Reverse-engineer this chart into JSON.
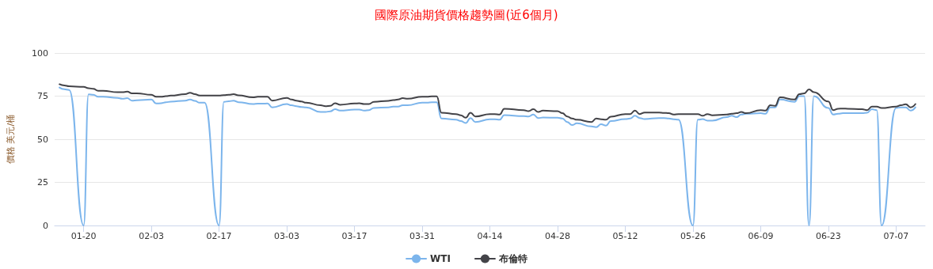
{
  "chart_data": {
    "type": "line",
    "title": "國際原油期貨價格趨勢圖(近6個月)",
    "ylabel": "價格 美元/桶",
    "x": [
      "--01-15",
      "--01-16",
      "--01-17",
      "--01-20",
      "--01-21",
      "--01-22",
      "--01-23",
      "--01-24",
      "--01-27",
      "--01-28",
      "--01-29",
      "--01-30",
      "--01-31",
      "--02-03",
      "--02-04",
      "--02-05",
      "--02-06",
      "--02-07",
      "--02-10",
      "--02-11",
      "--02-12",
      "--02-13",
      "--02-14",
      "--02-17",
      "--02-18",
      "--02-19",
      "--02-20",
      "--02-21",
      "--02-24",
      "--02-25",
      "--02-26",
      "--02-27",
      "--02-28",
      "--03-03",
      "--03-04",
      "--03-05",
      "--03-06",
      "--03-07",
      "--03-10",
      "--03-11",
      "--03-12",
      "--03-13",
      "--03-14",
      "--03-17",
      "--03-18",
      "--03-19",
      "--03-20",
      "--03-21",
      "--03-24",
      "--03-25",
      "--03-26",
      "--03-27",
      "--03-28",
      "--03-31",
      "--04-01",
      "--04-02",
      "--04-03",
      "--04-04",
      "--04-07",
      "--04-08",
      "--04-09",
      "--04-10",
      "--04-11",
      "--04-14",
      "--04-15",
      "--04-16",
      "--04-17",
      "--04-21",
      "--04-22",
      "--04-23",
      "--04-24",
      "--04-25",
      "--04-28",
      "--04-29",
      "--04-30",
      "--05-01",
      "--05-02",
      "--05-05",
      "--05-06",
      "--05-07",
      "--05-08",
      "--05-09",
      "--05-12",
      "--05-13",
      "--05-14",
      "--05-15",
      "--05-16",
      "--05-19",
      "--05-20",
      "--05-21",
      "--05-22",
      "--05-23",
      "--05-26",
      "--05-27",
      "--05-28",
      "--05-29",
      "--05-30",
      "--06-02",
      "--06-03",
      "--06-04",
      "--06-05",
      "--06-06",
      "--06-09",
      "--06-10",
      "--06-11",
      "--06-12",
      "--06-13",
      "--06-16",
      "--06-17",
      "--06-18",
      "--06-19",
      "--06-20",
      "--06-23",
      "--06-24",
      "--06-25",
      "--06-26",
      "--06-27",
      "--06-30",
      "--07-01",
      "--07-02",
      "--07-03",
      "--07-04",
      "--07-07",
      "--07-08",
      "--07-09",
      "--07-10",
      "--07-11"
    ],
    "series": [
      {
        "name": "WTI",
        "color": "#7cb5ec",
        "values": [
          80.0,
          79.0,
          78.6,
          0,
          76.0,
          75.8,
          74.6,
          74.7,
          74.0,
          73.5,
          73.8,
          72.4,
          72.6,
          73.0,
          70.7,
          70.9,
          71.4,
          71.8,
          72.4,
          73.0,
          72.2,
          71.2,
          71.2,
          0,
          71.7,
          72.0,
          72.4,
          71.5,
          70.4,
          70.6,
          70.6,
          70.7,
          68.5,
          70.4,
          69.7,
          69.2,
          68.7,
          68.5,
          65.8,
          65.8,
          66.2,
          67.4,
          66.6,
          67.2,
          67.2,
          66.6,
          66.9,
          68.1,
          68.5,
          68.9,
          68.9,
          69.7,
          69.7,
          71.2,
          71.2,
          71.5,
          71.5,
          62.0,
          61.3,
          60.5,
          59.4,
          62.3,
          60.0,
          61.6,
          61.6,
          61.3,
          64.0,
          63.4,
          63.2,
          64.3,
          62.3,
          62.6,
          62.5,
          62.0,
          60.0,
          58.2,
          59.3,
          57.4,
          57.0,
          58.7,
          57.9,
          60.5,
          61.7,
          62.0,
          63.6,
          62.3,
          61.7,
          62.3,
          62.3,
          62.0,
          61.6,
          61.3,
          0,
          61.3,
          61.7,
          60.8,
          60.8,
          62.8,
          63.6,
          62.8,
          64.3,
          64.8,
          65.1,
          64.8,
          68.5,
          68.5,
          73.0,
          71.7,
          75.0,
          75.0,
          0,
          75.0,
          68.1,
          64.3,
          64.8,
          65.1,
          65.1,
          65.1,
          65.4,
          67.4,
          66.9,
          0,
          68.1,
          68.5,
          68.5,
          66.6,
          68.5
        ]
      },
      {
        "name": "布倫特",
        "color": "#434348",
        "values": [
          81.9,
          81.2,
          80.7,
          80.4,
          79.6,
          79.2,
          78.1,
          78.1,
          77.3,
          77.3,
          77.6,
          76.6,
          76.6,
          75.8,
          74.6,
          74.6,
          75.0,
          75.3,
          76.1,
          76.9,
          76.1,
          75.3,
          75.3,
          75.3,
          75.6,
          75.8,
          76.1,
          75.5,
          74.3,
          74.6,
          74.7,
          74.6,
          72.4,
          74.0,
          73.0,
          72.4,
          71.9,
          71.2,
          69.7,
          69.2,
          69.4,
          70.9,
          70.0,
          70.7,
          70.9,
          70.4,
          70.4,
          71.7,
          72.3,
          72.7,
          73.0,
          73.8,
          73.5,
          74.6,
          74.6,
          74.9,
          74.9,
          65.4,
          64.6,
          63.9,
          62.5,
          65.4,
          63.2,
          64.6,
          64.6,
          64.3,
          67.7,
          66.9,
          66.3,
          67.4,
          65.8,
          66.6,
          66.3,
          65.1,
          63.2,
          62.0,
          61.3,
          60.0,
          62.0,
          61.6,
          61.3,
          63.1,
          64.6,
          64.6,
          66.6,
          64.6,
          65.5,
          65.5,
          65.3,
          65.1,
          64.3,
          64.6,
          64.6,
          64.6,
          63.6,
          64.6,
          63.9,
          64.3,
          64.8,
          65.1,
          65.8,
          65.1,
          66.9,
          66.6,
          69.7,
          69.4,
          74.3,
          73.0,
          76.1,
          76.6,
          78.9,
          77.3,
          71.9,
          66.9,
          67.7,
          67.8,
          67.7,
          67.4,
          66.9,
          68.9,
          68.9,
          68.1,
          68.9,
          69.7,
          70.3,
          68.5,
          70.4
        ]
      }
    ],
    "xlim": [
      "--01-14",
      "--07-13"
    ],
    "xticks": [
      {
        "value": "--01-20",
        "label": "01-20"
      },
      {
        "value": "--02-03",
        "label": "02-03"
      },
      {
        "value": "--02-17",
        "label": "02-17"
      },
      {
        "value": "--03-03",
        "label": "03-03"
      },
      {
        "value": "--03-17",
        "label": "03-17"
      },
      {
        "value": "--03-31",
        "label": "03-31"
      },
      {
        "value": "--04-14",
        "label": "04-14"
      },
      {
        "value": "--04-28",
        "label": "04-28"
      },
      {
        "value": "--05-12",
        "label": "05-12"
      },
      {
        "value": "--05-26",
        "label": "05-26"
      },
      {
        "value": "--06-09",
        "label": "06-09"
      },
      {
        "value": "--06-23",
        "label": "06-23"
      },
      {
        "value": "--07-07",
        "label": "07-07"
      }
    ],
    "ylim": [
      0,
      100
    ],
    "yticks": [
      0,
      25,
      50,
      75,
      100
    ],
    "grid": "y",
    "legend": "bottom"
  }
}
